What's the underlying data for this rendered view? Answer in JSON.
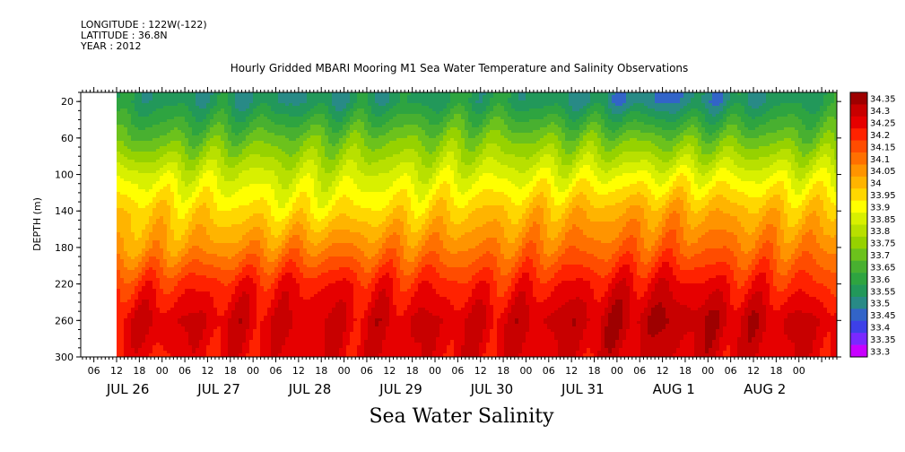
{
  "meta": {
    "longitude": "LONGITUDE : 122W(-122)",
    "latitude": "LATITUDE : 36.8N",
    "year": "YEAR : 2012"
  },
  "chart_data": {
    "type": "heatmap",
    "title": "Hourly Gridded MBARI Mooring M1 Sea Water Temperature and Salinity Observations",
    "xlabel": "Sea Water Salinity",
    "ylabel": "DEPTH (m)",
    "ylim": [
      300,
      10
    ],
    "yticks": [
      20,
      60,
      100,
      140,
      180,
      220,
      260,
      300
    ],
    "hour_ticks": [
      "06",
      "12",
      "18",
      "00",
      "06",
      "12",
      "18",
      "00",
      "06",
      "12",
      "18",
      "00",
      "06",
      "12",
      "18",
      "00",
      "06",
      "12",
      "18",
      "00",
      "06",
      "12",
      "18",
      "00",
      "06",
      "12",
      "18",
      "00",
      "06",
      "12",
      "18",
      "00"
    ],
    "day_labels": [
      "JUL 26",
      "JUL 27",
      "JUL 28",
      "JUL 29",
      "JUL 30",
      "JUL 31",
      "AUG  1",
      "AUG  2"
    ],
    "colorbar": {
      "levels": [
        34.35,
        34.3,
        34.25,
        34.2,
        34.15,
        34.1,
        34.05,
        34,
        33.95,
        33.9,
        33.85,
        33.8,
        33.75,
        33.7,
        33.65,
        33.6,
        33.55,
        33.5,
        33.45,
        33.4,
        33.35,
        33.3
      ],
      "colors": [
        "#9e0000",
        "#c80000",
        "#e60000",
        "#ff2200",
        "#ff4c00",
        "#ff7000",
        "#ff9400",
        "#ffb400",
        "#ffd700",
        "#ffff00",
        "#d8f000",
        "#b8e000",
        "#96d200",
        "#6cc21c",
        "#48b030",
        "#2ea440",
        "#22985a",
        "#288a86",
        "#3264c8",
        "#3d40e8",
        "#7a28ff",
        "#c800ff"
      ]
    },
    "profiles": [
      {
        "hour": 0,
        "depth_levels": [
          20,
          60,
          100,
          140,
          180,
          220,
          260,
          300
        ],
        "values": [
          33.58,
          33.7,
          33.88,
          34.0,
          34.05,
          34.2,
          34.3,
          34.25
        ]
      },
      {
        "hour": 48,
        "depth_levels": [
          20,
          60,
          100,
          140,
          180,
          220,
          260,
          300
        ],
        "values": [
          33.55,
          33.72,
          33.85,
          33.95,
          34.1,
          34.25,
          34.3,
          34.28
        ]
      },
      {
        "hour": 96,
        "depth_levels": [
          20,
          60,
          100,
          140,
          180,
          220,
          260,
          300
        ],
        "values": [
          33.6,
          33.75,
          33.88,
          34.0,
          34.1,
          34.22,
          34.3,
          34.28
        ]
      },
      {
        "hour": 144,
        "depth_levels": [
          20,
          60,
          100,
          140,
          180,
          220,
          260,
          300
        ],
        "values": [
          33.5,
          33.72,
          33.9,
          34.05,
          34.15,
          34.28,
          34.35,
          34.3
        ]
      },
      {
        "hour": 186,
        "depth_levels": [
          20,
          60,
          100,
          140,
          180,
          220,
          260,
          300
        ],
        "values": [
          33.6,
          33.72,
          33.88,
          34.0,
          34.1,
          34.2,
          34.3,
          34.28
        ]
      }
    ]
  }
}
